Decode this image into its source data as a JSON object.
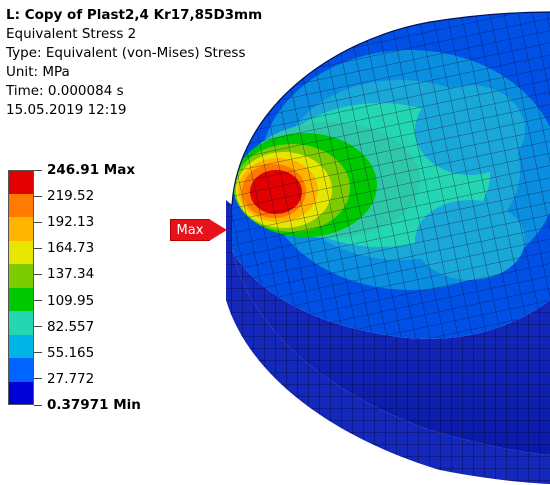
{
  "header": {
    "title": "L: Copy of Plast2,4 Kr17,85D3mm",
    "result_name": "Equivalent Stress 2",
    "type": "Type: Equivalent (von-Mises) Stress",
    "unit": "Unit: MPa",
    "time": "Time: 0.000084 s",
    "date": "15.05.2019 12:19"
  },
  "legend": {
    "entries": [
      {
        "label": "246.91 Max",
        "color": "#e30000",
        "bold": true
      },
      {
        "label": "219.52",
        "color": "#ff7b00",
        "bold": false
      },
      {
        "label": "192.13",
        "color": "#ffb400",
        "bold": false
      },
      {
        "label": "164.73",
        "color": "#e6e600",
        "bold": false
      },
      {
        "label": "137.34",
        "color": "#7ccc00",
        "bold": false
      },
      {
        "label": "109.95",
        "color": "#00c800",
        "bold": false
      },
      {
        "label": "82.557",
        "color": "#25d6b2",
        "bold": false
      },
      {
        "label": "55.165",
        "color": "#00b4e6",
        "bold": false
      },
      {
        "label": "27.772",
        "color": "#0064ff",
        "bold": false
      },
      {
        "label": "0.37971 Min",
        "color": "#0000d8",
        "bold": true
      }
    ]
  },
  "probe": {
    "max_label": "Max"
  }
}
